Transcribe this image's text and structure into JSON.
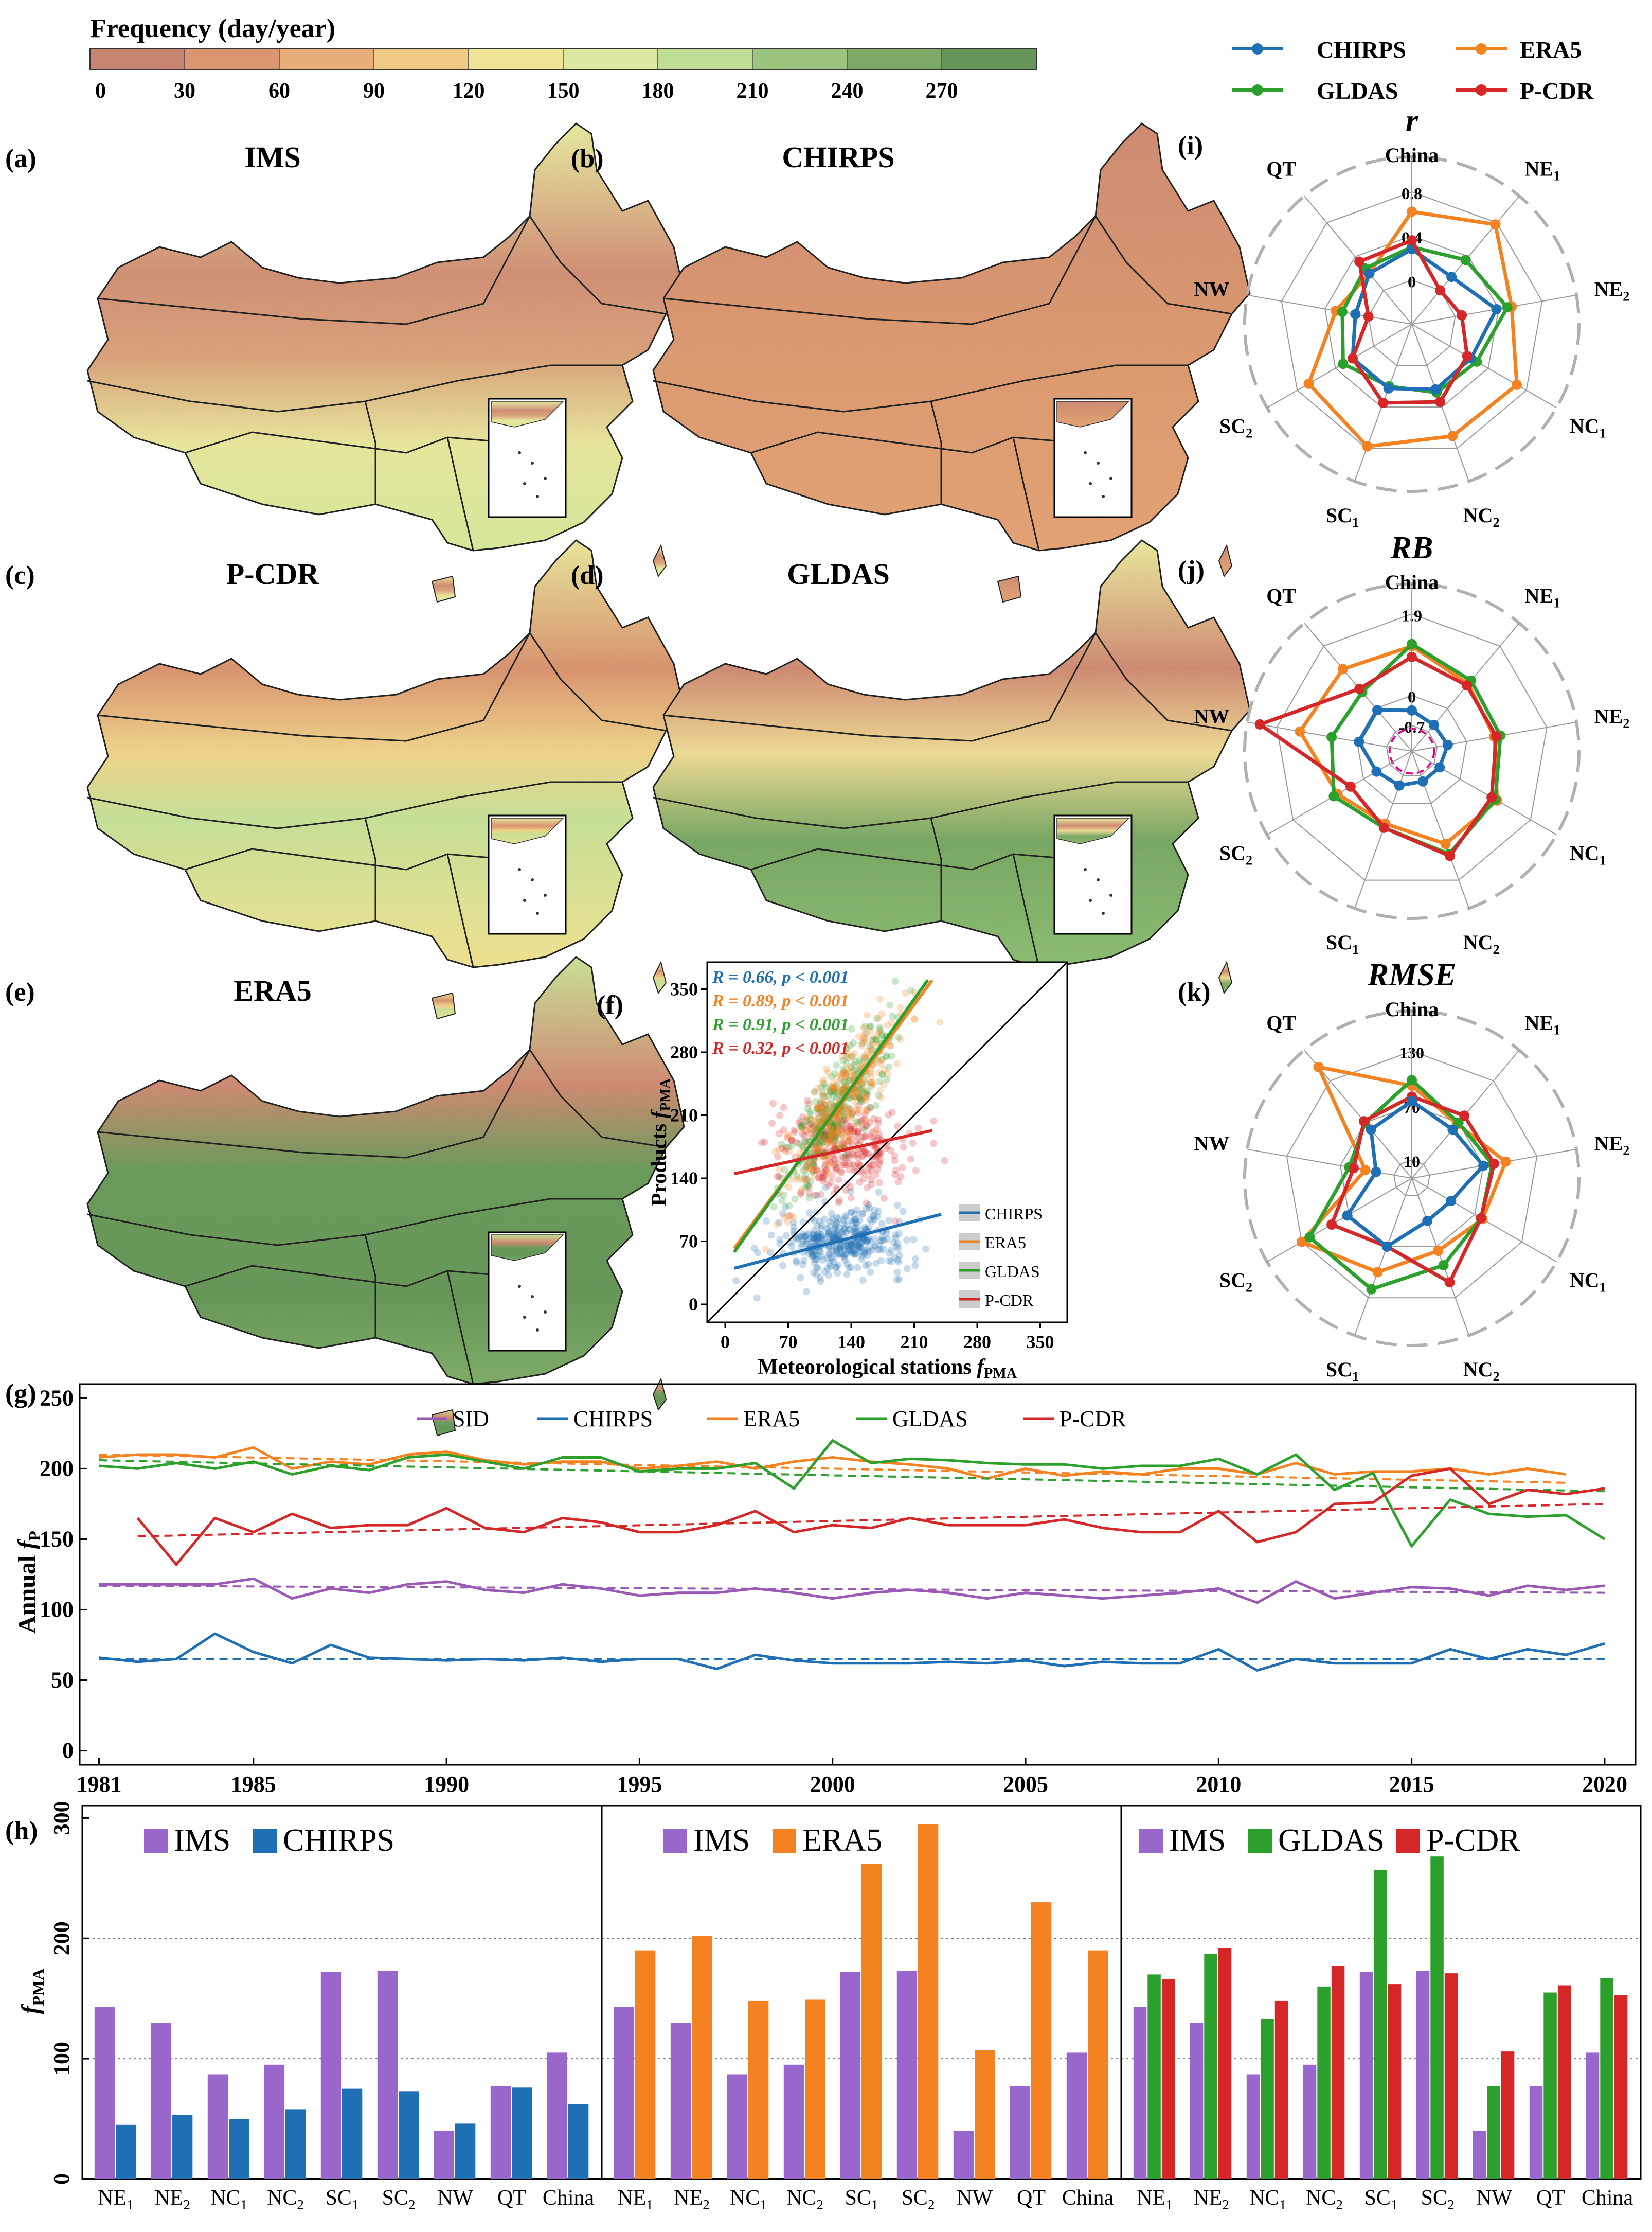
{
  "colorbar": {
    "title": "Frequency (day/year)",
    "ticks": [
      "0",
      "30",
      "60",
      "90",
      "120",
      "150",
      "180",
      "210",
      "240",
      "270"
    ],
    "colors": [
      "#c98471",
      "#d9966f",
      "#e8ad79",
      "#f1cb86",
      "#efe497",
      "#dde9a3",
      "#bfdd94",
      "#9bc57e",
      "#7caa66",
      "#66945a"
    ]
  },
  "maps": [
    {
      "panel": "(a)",
      "title": "IMS"
    },
    {
      "panel": "(b)",
      "title": "CHIRPS"
    },
    {
      "panel": "(c)",
      "title": "P-CDR"
    },
    {
      "panel": "(d)",
      "title": "GLDAS"
    },
    {
      "panel": "(e)",
      "title": "ERA5"
    }
  ],
  "legend": [
    {
      "name": "CHIRPS",
      "color": "#1f6fb4"
    },
    {
      "name": "ERA5",
      "color": "#f58220"
    },
    {
      "name": "GLDAS",
      "color": "#2ca02c"
    },
    {
      "name": "P-CDR",
      "color": "#d62728"
    }
  ],
  "chart_data": [
    {
      "panel": "(f)",
      "type": "scatter",
      "xlabel": "Meteorological stations f_PMA",
      "ylabel": "Products f_PMA",
      "xlabel_main": "Meteorological stations ",
      "ylabel_main": "Products ",
      "label_italic": "f",
      "label_sub": "PMA",
      "xlim": [
        -20,
        380
      ],
      "ylim": [
        -20,
        380
      ],
      "xticks": [
        "0",
        "70",
        "140",
        "210",
        "280",
        "350"
      ],
      "yticks": [
        "0",
        "70",
        "140",
        "210",
        "280",
        "350"
      ],
      "series": [
        {
          "name": "CHIRPS",
          "color": "#1f6fb4",
          "stat": "R = 0.66, p < 0.001",
          "fit": [
            [
              10,
              40
            ],
            [
              240,
              100
            ]
          ],
          "cloud": {
            "cx": 130,
            "cy": 70,
            "sx": 35,
            "sy": 18,
            "n": 380
          }
        },
        {
          "name": "ERA5",
          "color": "#f58220",
          "stat": "R = 0.89, p < 0.001",
          "fit": [
            [
              10,
              62
            ],
            [
              230,
              360
            ]
          ],
          "cloud": {
            "cx": 130,
            "cy": 235,
            "sx": 30,
            "sy": 45,
            "n": 300
          }
        },
        {
          "name": "GLDAS",
          "color": "#2ca02c",
          "stat": "R = 0.91, p < 0.001",
          "fit": [
            [
              10,
              58
            ],
            [
              225,
              360
            ]
          ],
          "cloud": {
            "cx": 125,
            "cy": 225,
            "sx": 30,
            "sy": 40,
            "n": 300
          }
        },
        {
          "name": "P-CDR",
          "color": "#d62728",
          "stat": "R = 0.32, p < 0.001",
          "fit": [
            [
              10,
              145
            ],
            [
              230,
              193
            ]
          ],
          "cloud": {
            "cx": 130,
            "cy": 175,
            "sx": 35,
            "sy": 25,
            "n": 320
          }
        }
      ],
      "legend": [
        "CHIRPS",
        "ERA5",
        "GLDAS",
        "P-CDR"
      ]
    },
    {
      "panel": "(i)",
      "type": "radar",
      "title": "r",
      "axes": [
        "China",
        "NE1",
        "NE2",
        "NC1",
        "NC2",
        "SC1",
        "SC2",
        "NW",
        "QT"
      ],
      "range": [
        -0.4,
        1.0
      ],
      "rings": [
        "0",
        "0.4",
        "0.8"
      ],
      "series": [
        {
          "name": "ERA5",
          "color": "#f58220",
          "values": [
            0.62,
            0.78,
            0.52,
            0.7,
            0.68,
            0.78,
            0.68,
            0.3,
            0.2
          ]
        },
        {
          "name": "GLDAS",
          "color": "#2ca02c",
          "values": [
            0.3,
            0.36,
            0.48,
            0.28,
            0.26,
            0.2,
            0.32,
            0.24,
            0.26
          ]
        },
        {
          "name": "CHIRPS",
          "color": "#1f6fb4",
          "values": [
            0.28,
            0.16,
            0.38,
            0.22,
            0.23,
            0.22,
            0.22,
            0.12,
            0.2
          ]
        },
        {
          "name": "P-CDR",
          "color": "#d62728",
          "values": [
            0.36,
            0.0,
            0.06,
            0.18,
            0.35,
            0.36,
            0.22,
            0.0,
            0.34
          ]
        }
      ]
    },
    {
      "panel": "(j)",
      "type": "radar",
      "title": "RB",
      "axes": [
        "China",
        "NE1",
        "NE2",
        "NC1",
        "NC2",
        "SC1",
        "SC2",
        "NW",
        "QT"
      ],
      "range": [
        -1.3,
        2.3
      ],
      "rings": [
        "-0.7",
        "0",
        "1.9"
      ],
      "series": [
        {
          "name": "ERA5",
          "color": "#f58220",
          "values": [
            1.15,
            0.75,
            0.65,
            1.0,
            1.0,
            0.5,
            0.7,
            1.35,
            1.2
          ]
        },
        {
          "name": "GLDAS",
          "color": "#2ca02c",
          "values": [
            1.2,
            0.85,
            0.8,
            0.95,
            1.25,
            0.6,
            0.8,
            0.6,
            0.5
          ]
        },
        {
          "name": "P-CDR",
          "color": "#d62728",
          "values": [
            0.9,
            0.7,
            0.7,
            0.85,
            1.3,
            0.6,
            0.35,
            2.3,
            0.6
          ]
        },
        {
          "name": "CHIRPS",
          "color": "#1f6fb4",
          "values": [
            -0.35,
            -0.5,
            -0.45,
            -0.55,
            -0.55,
            -0.45,
            -0.35,
            -0.05,
            -0.05
          ]
        }
      ]
    },
    {
      "panel": "(k)",
      "type": "radar",
      "title": "RMSE",
      "axes": [
        "China",
        "NE1",
        "NE2",
        "NC1",
        "NC2",
        "SC1",
        "SC2",
        "NW",
        "QT"
      ],
      "range": [
        -10,
        160
      ],
      "rings": [
        "10",
        "70",
        "130"
      ],
      "series": [
        {
          "name": "ERA5",
          "color": "#f58220",
          "values": [
            92,
            68,
            95,
            80,
            75,
            100,
            130,
            42,
            150
          ]
        },
        {
          "name": "GLDAS",
          "color": "#2ca02c",
          "values": [
            98,
            70,
            80,
            78,
            92,
            120,
            120,
            60,
            70
          ]
        },
        {
          "name": "P-CDR",
          "color": "#d62728",
          "values": [
            80,
            80,
            82,
            78,
            112,
            70,
            92,
            55,
            72
          ]
        },
        {
          "name": "CHIRPS",
          "color": "#1f6fb4",
          "values": [
            75,
            60,
            70,
            40,
            40,
            70,
            72,
            30,
            60
          ]
        }
      ]
    },
    {
      "panel": "(g)",
      "type": "line",
      "ylabel": "Annual f_P",
      "ylabel_main": "Annual ",
      "ylabel_italic": "f",
      "ylabel_sub": "P",
      "xlim": [
        1980.5,
        2020.8
      ],
      "ylim": [
        -10,
        260
      ],
      "xticks": [
        "1981",
        "1985",
        "1990",
        "1995",
        "2000",
        "2005",
        "2010",
        "2015",
        "2020"
      ],
      "yticks": [
        "0",
        "50",
        "100",
        "150",
        "200",
        "250"
      ],
      "x": [
        1981,
        1982,
        1983,
        1984,
        1985,
        1986,
        1987,
        1988,
        1989,
        1990,
        1991,
        1992,
        1993,
        1994,
        1995,
        1996,
        1997,
        1998,
        1999,
        2000,
        2001,
        2002,
        2003,
        2004,
        2005,
        2006,
        2007,
        2008,
        2009,
        2010,
        2011,
        2012,
        2013,
        2014,
        2015,
        2016,
        2017,
        2018,
        2019,
        2020
      ],
      "series": [
        {
          "name": "SID",
          "color": "#9b59b6",
          "values": [
            118,
            118,
            118,
            118,
            122,
            108,
            115,
            112,
            118,
            120,
            114,
            112,
            118,
            115,
            110,
            112,
            112,
            115,
            112,
            108,
            112,
            114,
            112,
            108,
            112,
            110,
            108,
            110,
            112,
            115,
            105,
            120,
            108,
            112,
            116,
            115,
            110,
            117,
            114,
            117
          ],
          "trend": [
            117,
            112
          ]
        },
        {
          "name": "CHIRPS",
          "color": "#1f6fb4",
          "values": [
            66,
            63,
            65,
            83,
            70,
            62,
            75,
            66,
            65,
            64,
            65,
            64,
            66,
            63,
            65,
            65,
            58,
            68,
            64,
            62,
            62,
            62,
            63,
            62,
            64,
            60,
            63,
            62,
            62,
            72,
            57,
            65,
            62,
            62,
            62,
            72,
            65,
            72,
            68,
            76
          ],
          "trend": [
            65,
            65
          ]
        },
        {
          "name": "ERA5",
          "color": "#f58220",
          "values": [
            208,
            210,
            210,
            208,
            215,
            200,
            205,
            203,
            210,
            212,
            206,
            203,
            205,
            205,
            200,
            202,
            205,
            200,
            205,
            208,
            205,
            203,
            200,
            193,
            200,
            195,
            198,
            196,
            200,
            200,
            196,
            204,
            196,
            198,
            198,
            200,
            196,
            200,
            196,
            null
          ],
          "trend": [
            210,
            190
          ]
        },
        {
          "name": "GLDAS",
          "color": "#2ca02c",
          "values": [
            202,
            200,
            204,
            200,
            205,
            196,
            202,
            199,
            208,
            210,
            205,
            200,
            208,
            208,
            198,
            200,
            200,
            204,
            186,
            220,
            204,
            207,
            206,
            204,
            203,
            203,
            200,
            202,
            202,
            207,
            196,
            210,
            185,
            197,
            145,
            178,
            168,
            166,
            167,
            150
          ],
          "trend": [
            206,
            184
          ]
        },
        {
          "name": "P-CDR",
          "color": "#d62728",
          "values": [
            null,
            165,
            132,
            165,
            155,
            168,
            158,
            160,
            160,
            172,
            158,
            155,
            165,
            162,
            155,
            155,
            160,
            170,
            155,
            160,
            158,
            165,
            160,
            160,
            160,
            164,
            158,
            155,
            155,
            170,
            148,
            155,
            175,
            176,
            195,
            200,
            175,
            185,
            182,
            186
          ],
          "trend": [
            152,
            175
          ]
        }
      ]
    },
    {
      "panel": "(h)",
      "type": "bar",
      "ylabel": "f_PMA",
      "ylabel_italic": "f",
      "ylabel_sub": "PMA",
      "ylim": [
        0,
        310
      ],
      "yticks": [
        "0",
        "100",
        "200",
        "300"
      ],
      "categories": [
        "NE1",
        "NE2",
        "NC1",
        "NC2",
        "SC1",
        "SC2",
        "NW",
        "QT",
        "China"
      ],
      "groups": [
        {
          "series": [
            {
              "name": "IMS",
              "color": "#9966cc",
              "values": [
                143,
                130,
                87,
                95,
                172,
                173,
                40,
                77,
                105
              ]
            },
            {
              "name": "CHIRPS",
              "color": "#1f6fb4",
              "values": [
                45,
                53,
                50,
                58,
                75,
                73,
                46,
                76,
                62
              ]
            }
          ]
        },
        {
          "series": [
            {
              "name": "IMS",
              "color": "#9966cc",
              "values": [
                143,
                130,
                87,
                95,
                172,
                173,
                40,
                77,
                105
              ]
            },
            {
              "name": "ERA5",
              "color": "#f58220",
              "values": [
                190,
                202,
                148,
                149,
                262,
                295,
                107,
                230,
                190
              ]
            }
          ]
        },
        {
          "series": [
            {
              "name": "IMS",
              "color": "#9966cc",
              "values": [
                143,
                130,
                87,
                95,
                172,
                173,
                40,
                77,
                105
              ]
            },
            {
              "name": "GLDAS",
              "color": "#2ca02c",
              "values": [
                170,
                187,
                133,
                160,
                257,
                268,
                77,
                155,
                167
              ]
            },
            {
              "name": "P-CDR",
              "color": "#d62728",
              "values": [
                166,
                192,
                148,
                177,
                162,
                171,
                106,
                161,
                153
              ]
            }
          ]
        }
      ]
    }
  ]
}
